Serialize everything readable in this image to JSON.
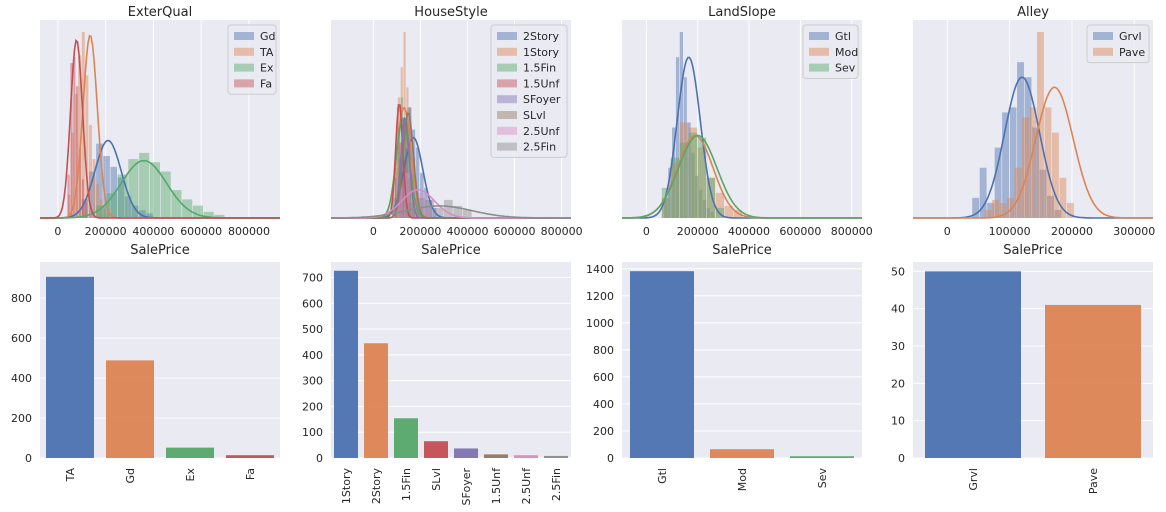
{
  "chart_data": [
    {
      "type": "histogram",
      "title": "ExterQual",
      "xlabel": "SalePrice",
      "xlim": [
        -75000,
        930000
      ],
      "xticks": [
        0,
        200000,
        400000,
        600000,
        800000
      ],
      "xtick_labels": [
        "0",
        "200000",
        "400000",
        "600000",
        "800000"
      ],
      "legend_loc": "top-right",
      "series": [
        {
          "name": "Gd",
          "color": "#4c72b0",
          "binStart": 100000,
          "binWidth": 30000,
          "hist": [
            12,
            30,
            48,
            40,
            33,
            26,
            14,
            8,
            5,
            3
          ],
          "kde": {
            "peak": 210000,
            "sd": 55000,
            "h": 50
          }
        },
        {
          "name": "TA",
          "color": "#dd8452",
          "binStart": 40000,
          "binWidth": 15000,
          "hist": [
            15,
            55,
            80,
            105,
            120,
            92,
            60,
            38,
            22,
            12,
            6,
            3
          ],
          "kde": {
            "peak": 135000,
            "sd": 30000,
            "h": 118
          }
        },
        {
          "name": "Ex",
          "color": "#55a868",
          "binStart": 160000,
          "binWidth": 45000,
          "hist": [
            8,
            16,
            28,
            38,
            42,
            36,
            30,
            18,
            12,
            8,
            4,
            2
          ],
          "kde": {
            "peak": 360000,
            "sd": 95000,
            "h": 37
          }
        },
        {
          "name": "Fa",
          "color": "#c44e52",
          "binStart": 40000,
          "binWidth": 12000,
          "hist": [
            28,
            100,
            104,
            85,
            45,
            25,
            10
          ],
          "kde": {
            "peak": 78000,
            "sd": 25000,
            "h": 115
          }
        }
      ]
    },
    {
      "type": "histogram",
      "title": "HouseStyle",
      "xlabel": "SalePrice",
      "xlim": [
        -180000,
        840000
      ],
      "xticks": [
        0,
        200000,
        400000,
        600000,
        800000
      ],
      "xtick_labels": [
        "0",
        "200000",
        "400000",
        "600000",
        "800000"
      ],
      "legend_loc": "top-right",
      "series": [
        {
          "name": "2Story",
          "color": "#4c72b0",
          "binStart": 90000,
          "binWidth": 18000,
          "hist": [
            20,
            60,
            95,
            110,
            88,
            70,
            45,
            30,
            18,
            10
          ],
          "kde": {
            "peak": 170000,
            "sd": 40000,
            "h": 80
          }
        },
        {
          "name": "1Story",
          "color": "#dd8452",
          "binStart": 80000,
          "binWidth": 12000,
          "hist": [
            30,
            70,
            120,
            150,
            185,
            130,
            90,
            55,
            30,
            18
          ],
          "kde": {
            "peak": 130000,
            "sd": 30000,
            "h": 110
          }
        },
        {
          "name": "1.5Fin",
          "color": "#55a868",
          "binStart": 80000,
          "binWidth": 12000,
          "hist": [
            20,
            50,
            90,
            120,
            100,
            70,
            40,
            20
          ],
          "kde": {
            "peak": 125000,
            "sd": 28000,
            "h": 98
          }
        },
        {
          "name": "1.5Unf",
          "color": "#c44e52",
          "binStart": 90000,
          "binWidth": 10000,
          "hist": [
            40,
            110,
            75,
            30
          ],
          "kde": {
            "peak": 110000,
            "sd": 15000,
            "h": 115
          }
        },
        {
          "name": "SFoyer",
          "color": "#8172b3",
          "binStart": 110000,
          "binWidth": 12000,
          "hist": [
            50,
            100,
            70,
            40
          ],
          "kde": {
            "peak": 135000,
            "sd": 18000,
            "h": 100
          }
        },
        {
          "name": "SLvl",
          "color": "#937860",
          "binStart": 120000,
          "binWidth": 15000,
          "hist": [
            40,
            90,
            110,
            60,
            25
          ],
          "kde": {
            "peak": 148000,
            "sd": 22000,
            "h": 105
          }
        },
        {
          "name": "2.5Unf",
          "color": "#da8bc3",
          "binStart": 100000,
          "binWidth": 30000,
          "hist": [
            30,
            45,
            35,
            25,
            18
          ],
          "kde": {
            "peak": 190000,
            "sd": 70000,
            "h": 28
          }
        },
        {
          "name": "2.5Fin",
          "color": "#8c8c8c",
          "binStart": 140000,
          "binWidth": 40000,
          "hist": [
            15,
            20,
            18,
            10,
            18,
            12,
            8
          ],
          "kde": {
            "peak": 280000,
            "sd": 140000,
            "h": 12
          }
        }
      ]
    },
    {
      "type": "histogram",
      "title": "LandSlope",
      "xlabel": "SalePrice",
      "xlim": [
        -95000,
        840000
      ],
      "xticks": [
        0,
        200000,
        400000,
        600000,
        800000
      ],
      "xtick_labels": [
        "0",
        "200000",
        "400000",
        "600000",
        "800000"
      ],
      "legend_loc": "top-right",
      "series": [
        {
          "name": "Gtl",
          "color": "#4c72b0",
          "binStart": 70000,
          "binWidth": 15000,
          "hist": [
            20,
            50,
            90,
            160,
            185,
            140,
            95,
            65,
            42,
            28,
            18,
            10,
            6
          ],
          "kde": {
            "peak": 165000,
            "sd": 45000,
            "h": 160
          }
        },
        {
          "name": "Mod",
          "color": "#dd8452",
          "binStart": 60000,
          "binWidth": 35000,
          "hist": [
            20,
            55,
            95,
            90,
            70,
            40,
            25,
            12,
            8
          ],
          "kde": {
            "peak": 190000,
            "sd": 70000,
            "h": 82
          }
        },
        {
          "name": "Sev",
          "color": "#55a868",
          "binStart": 60000,
          "binWidth": 35000,
          "hist": [
            30,
            60,
            75,
            85,
            80,
            40,
            10
          ],
          "kde": {
            "peak": 200000,
            "sd": 75000,
            "h": 82
          }
        }
      ]
    },
    {
      "type": "histogram",
      "title": "Alley",
      "xlabel": "SalePrice",
      "xlim": [
        -55000,
        330000
      ],
      "xticks": [
        0,
        100000,
        200000,
        300000
      ],
      "xtick_labels": [
        "0",
        "100000",
        "200000",
        "300000"
      ],
      "legend_loc": "top-right",
      "series": [
        {
          "name": "Grvl",
          "color": "#4c72b0",
          "binStart": 40000,
          "binWidth": 12000,
          "hist": [
            20,
            50,
            15,
            70,
            105,
            110,
            155,
            140,
            90,
            48,
            22,
            8
          ],
          "kde": {
            "peak": 120000,
            "sd": 28000,
            "h": 140
          }
        },
        {
          "name": "Pave",
          "color": "#dd8452",
          "binStart": 60000,
          "binWidth": 12000,
          "hist": [
            8,
            18,
            15,
            20,
            50,
            100,
            110,
            185,
            110,
            85,
            40,
            15
          ],
          "kde": {
            "peak": 172000,
            "sd": 30000,
            "h": 130
          }
        }
      ]
    },
    {
      "type": "bar",
      "categories": [
        "TA",
        "Gd",
        "Ex",
        "Fa"
      ],
      "values": [
        906,
        488,
        52,
        14
      ],
      "colors": [
        "#4c72b0",
        "#dd8452",
        "#55a868",
        "#c44e52"
      ],
      "ylim": [
        0,
        980
      ],
      "yticks": [
        0,
        200,
        400,
        600,
        800
      ],
      "ytick_labels": [
        "0",
        "200",
        "400",
        "600",
        "800"
      ]
    },
    {
      "type": "bar",
      "categories": [
        "1Story",
        "2Story",
        "1.5Fin",
        "SLvl",
        "SFoyer",
        "1.5Unf",
        "2.5Unf",
        "2.5Fin"
      ],
      "values": [
        726,
        445,
        154,
        65,
        37,
        14,
        11,
        8
      ],
      "colors": [
        "#4c72b0",
        "#dd8452",
        "#55a868",
        "#c44e52",
        "#8172b3",
        "#937860",
        "#da8bc3",
        "#8c8c8c"
      ],
      "ylim": [
        0,
        760
      ],
      "yticks": [
        0,
        100,
        200,
        300,
        400,
        500,
        600,
        700
      ],
      "ytick_labels": [
        "0",
        "100",
        "200",
        "300",
        "400",
        "500",
        "600",
        "700"
      ]
    },
    {
      "type": "bar",
      "categories": [
        "Gtl",
        "Mod",
        "Sev"
      ],
      "values": [
        1382,
        65,
        13
      ],
      "colors": [
        "#4c72b0",
        "#dd8452",
        "#55a868"
      ],
      "ylim": [
        0,
        1450
      ],
      "yticks": [
        0,
        200,
        400,
        600,
        800,
        1000,
        1200,
        1400
      ],
      "ytick_labels": [
        "0",
        "200",
        "400",
        "600",
        "800",
        "1000",
        "1200",
        "1400"
      ]
    },
    {
      "type": "bar",
      "categories": [
        "Grvl",
        "Pave"
      ],
      "values": [
        50,
        41
      ],
      "colors": [
        "#4c72b0",
        "#dd8452"
      ],
      "ylim": [
        0,
        52.5
      ],
      "yticks": [
        0,
        10,
        20,
        30,
        40,
        50
      ],
      "ytick_labels": [
        "0",
        "10",
        "20",
        "30",
        "40",
        "50"
      ]
    }
  ]
}
